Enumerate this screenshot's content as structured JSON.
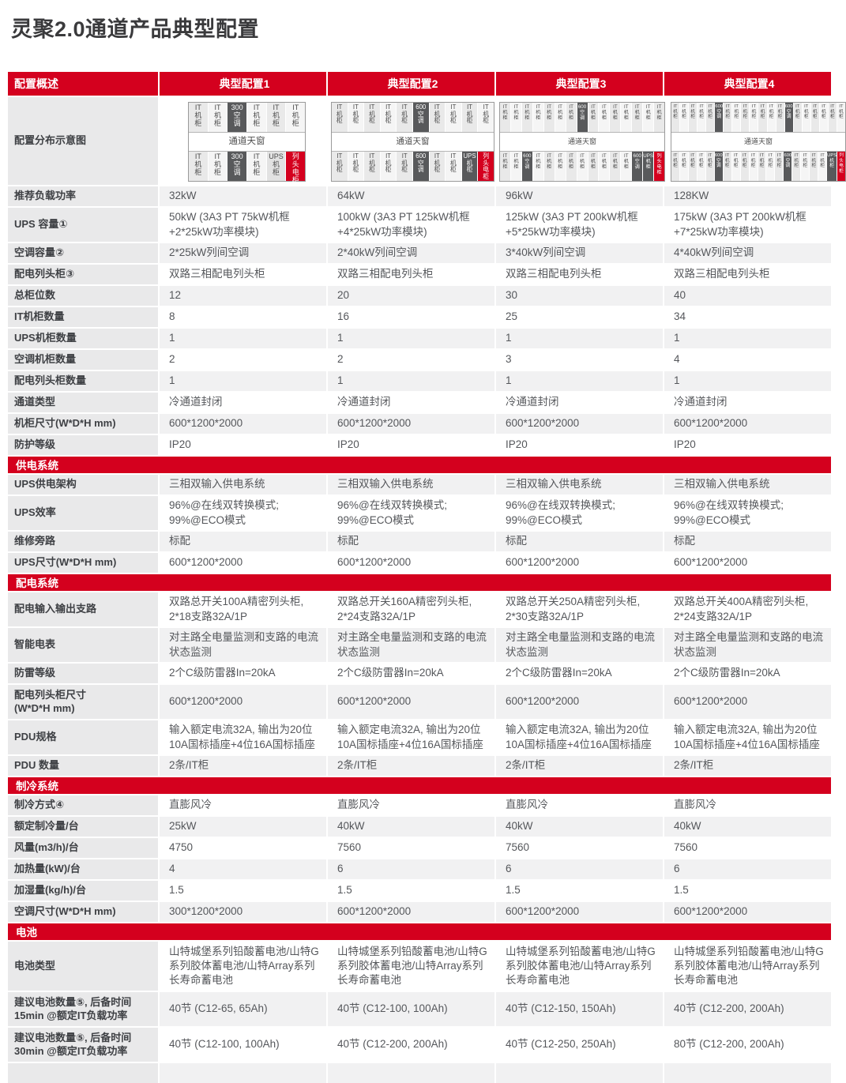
{
  "page": {
    "title": "灵聚2.0通道产品典型配置"
  },
  "colors": {
    "brand_red": "#d4001e",
    "dark_cell_gray": "#58595b"
  },
  "table": {
    "header": [
      "配置概述",
      "典型配置1",
      "典型配置2",
      "典型配置3",
      "典型配置4"
    ],
    "diagram_row_label": "配置分布示意图",
    "skylight_label": "通道天窗",
    "cell_labels": {
      "it": "IT\n机\n柜",
      "ac300": "300\n空\n调",
      "ac600": "600\n空\n调",
      "ups": "UPS\n机\n柜",
      "ups_light": "UPS\n机\n柜",
      "lh": "列\n头\n电\n柜"
    },
    "diagrams": [
      {
        "top": [
          "it",
          "it",
          "ac300",
          "it",
          "it",
          "it"
        ],
        "bottom": [
          "it",
          "it",
          "ac300",
          "it",
          "ups_light",
          "lh"
        ]
      },
      {
        "top": [
          "it",
          "it",
          "it",
          "it",
          "it",
          "ac600",
          "it",
          "it",
          "it",
          "it"
        ],
        "bottom": [
          "it",
          "it",
          "it",
          "it",
          "it",
          "ac600",
          "it",
          "it",
          "ups",
          "lh"
        ]
      },
      {
        "top": [
          "it",
          "it",
          "it",
          "it",
          "it",
          "it",
          "it",
          "ac600",
          "it",
          "it",
          "it",
          "it",
          "it",
          "it",
          "it"
        ],
        "bottom": [
          "it",
          "it",
          "ac600",
          "it",
          "it",
          "it",
          "it",
          "it",
          "it",
          "it",
          "it",
          "it",
          "ac600",
          "ups",
          "lh"
        ]
      },
      {
        "top": [
          "it",
          "it",
          "it",
          "it",
          "it",
          "ac600",
          "it",
          "it",
          "it",
          "it",
          "it",
          "it",
          "it",
          "ac600",
          "it",
          "it",
          "it",
          "it",
          "it",
          "it"
        ],
        "bottom": [
          "it",
          "it",
          "it",
          "it",
          "it",
          "ac600",
          "it",
          "it",
          "it",
          "it",
          "it",
          "it",
          "it",
          "ac600",
          "it",
          "it",
          "it",
          "it",
          "ups",
          "lh"
        ]
      }
    ],
    "sections": [
      {
        "title": "",
        "rows": [
          {
            "label": "推荐负载功率",
            "cells": [
              "32kW",
              "64kW",
              "96kW",
              "128KW"
            ]
          },
          {
            "label": "UPS 容量①",
            "cells": [
              "50kW (3A3 PT 75kW机框\n+2*25kW功率模块)",
              "100kW (3A3 PT 125kW机框\n+4*25kW功率模块)",
              "125kW (3A3 PT 200kW机框\n+5*25kW功率模块)",
              "175kW (3A3 PT 200kW机框\n+7*25kW功率模块)"
            ]
          },
          {
            "label": "空调容量②",
            "cells": [
              "2*25kW列间空调",
              "2*40kW列间空调",
              "3*40kW列间空调",
              "4*40kW列间空调"
            ]
          },
          {
            "label": "配电列头柜③",
            "cells": [
              "双路三相配电列头柜",
              "双路三相配电列头柜",
              "双路三相配电列头柜",
              "双路三相配电列头柜"
            ]
          },
          {
            "label": "总柜位数",
            "cells": [
              "12",
              "20",
              "30",
              "40"
            ]
          },
          {
            "label": "IT机柜数量",
            "cells": [
              "8",
              "16",
              "25",
              "34"
            ]
          },
          {
            "label": "UPS机柜数量",
            "cells": [
              "1",
              "1",
              "1",
              "1"
            ]
          },
          {
            "label": "空调机柜数量",
            "cells": [
              "2",
              "2",
              "3",
              "4"
            ]
          },
          {
            "label": "配电列头柜数量",
            "cells": [
              "1",
              "1",
              "1",
              "1"
            ]
          },
          {
            "label": "通道类型",
            "cells": [
              "冷通道封闭",
              "冷通道封闭",
              "冷通道封闭",
              "冷通道封闭"
            ]
          },
          {
            "label": "机柜尺寸(W*D*H mm)",
            "cells": [
              "600*1200*2000",
              "600*1200*2000",
              "600*1200*2000",
              "600*1200*2000"
            ]
          },
          {
            "label": "防护等级",
            "cells": [
              "IP20",
              "IP20",
              "IP20",
              "IP20"
            ]
          }
        ]
      },
      {
        "title": "供电系统",
        "rows": [
          {
            "label": "UPS供电架构",
            "cells": [
              "三相双输入供电系统",
              "三相双输入供电系统",
              "三相双输入供电系统",
              "三相双输入供电系统"
            ]
          },
          {
            "label": "UPS效率",
            "cells": [
              "96%@在线双转换模式;\n99%@ECO模式",
              "96%@在线双转换模式;\n99%@ECO模式",
              "96%@在线双转换模式;\n99%@ECO模式",
              "96%@在线双转换模式;\n99%@ECO模式"
            ]
          },
          {
            "label": "维修旁路",
            "cells": [
              "标配",
              "标配",
              "标配",
              "标配"
            ]
          },
          {
            "label": "UPS尺寸(W*D*H mm)",
            "cells": [
              "600*1200*2000",
              "600*1200*2000",
              "600*1200*2000",
              "600*1200*2000"
            ]
          }
        ]
      },
      {
        "title": "配电系统",
        "rows": [
          {
            "label": "配电输入输出支路",
            "cells": [
              "双路总开关100A精密列头柜,\n2*18支路32A/1P",
              "双路总开关160A精密列头柜,\n2*24支路32A/1P",
              "双路总开关250A精密列头柜,\n2*30支路32A/1P",
              "双路总开关400A精密列头柜,\n2*24支路32A/1P"
            ]
          },
          {
            "label": "智能电表",
            "cells": [
              "对主路全电量监测和支路的电流\n状态监测",
              "对主路全电量监测和支路的电流\n状态监测",
              "对主路全电量监测和支路的电流\n状态监测",
              "对主路全电量监测和支路的电流\n状态监测"
            ]
          },
          {
            "label": "防雷等级",
            "cells": [
              "2个C级防雷器In=20kA",
              "2个C级防雷器In=20kA",
              "2个C级防雷器In=20kA",
              "2个C级防雷器In=20kA"
            ]
          },
          {
            "label": "配电列头柜尺寸\n(W*D*H mm)",
            "cells": [
              "600*1200*2000",
              "600*1200*2000",
              "600*1200*2000",
              "600*1200*2000"
            ]
          },
          {
            "label": "PDU规格",
            "cells": [
              "输入额定电流32A, 输出为20位\n10A国标插座+4位16A国标插座",
              "输入额定电流32A, 输出为20位\n10A国标插座+4位16A国标插座",
              "输入额定电流32A, 输出为20位\n10A国标插座+4位16A国标插座",
              "输入额定电流32A, 输出为20位\n10A国标插座+4位16A国标插座"
            ]
          },
          {
            "label": "PDU 数量",
            "cells": [
              "2条/IT柜",
              "2条/IT柜",
              "2条/IT柜",
              "2条/IT柜"
            ]
          }
        ]
      },
      {
        "title": "制冷系统",
        "rows": [
          {
            "label": "制冷方式④",
            "cells": [
              "直膨风冷",
              "直膨风冷",
              "直膨风冷",
              "直膨风冷"
            ]
          },
          {
            "label": "额定制冷量/台",
            "cells": [
              "25kW",
              "40kW",
              "40kW",
              "40kW"
            ]
          },
          {
            "label": "风量(m3/h)/台",
            "cells": [
              "4750",
              "7560",
              "7560",
              "7560"
            ]
          },
          {
            "label": "加热量(kW)/台",
            "cells": [
              "4",
              "6",
              "6",
              "6"
            ]
          },
          {
            "label": "加湿量(kg/h)/台",
            "cells": [
              "1.5",
              "1.5",
              "1.5",
              "1.5"
            ]
          },
          {
            "label": "空调尺寸(W*D*H mm)",
            "cells": [
              "300*1200*2000",
              "600*1200*2000",
              "600*1200*2000",
              "600*1200*2000"
            ]
          }
        ]
      },
      {
        "title": "电池",
        "rows": [
          {
            "label": "电池类型",
            "cells": [
              "山特城堡系列铅酸蓄电池/山特G\n系列胶体蓄电池/山特Array系列\n长寿命蓄电池",
              "山特城堡系列铅酸蓄电池/山特G\n系列胶体蓄电池/山特Array系列\n长寿命蓄电池",
              "山特城堡系列铅酸蓄电池/山特G\n系列胶体蓄电池/山特Array系列\n长寿命蓄电池",
              "山特城堡系列铅酸蓄电池/山特G\n系列胶体蓄电池/山特Array系列\n长寿命蓄电池"
            ]
          },
          {
            "label": "建议电池数量⑤, 后备时间\n15min @额定IT负载功率",
            "cells": [
              "40节 (C12-65, 65Ah)",
              "40节 (C12-100, 100Ah)",
              "40节 (C12-150, 150Ah)",
              "40节 (C12-200, 200Ah)"
            ]
          },
          {
            "label": "建议电池数量⑤, 后备时间\n30min @额定IT负载功率",
            "cells": [
              "40节 (C12-100, 100Ah)",
              "40节 (C12-200, 200Ah)",
              "40节 (C12-250, 250Ah)",
              "80节 (C12-200, 200Ah)"
            ]
          }
        ]
      }
    ]
  }
}
